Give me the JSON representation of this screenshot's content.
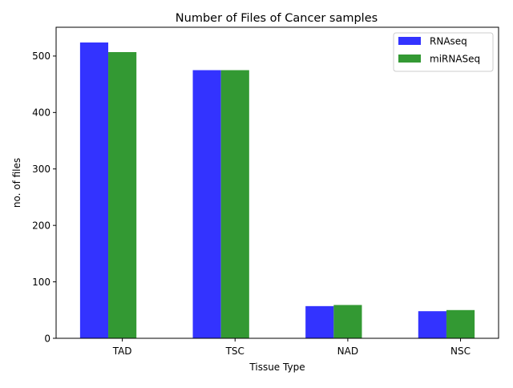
{
  "chart_data": {
    "type": "bar",
    "title": "Number of Files of Cancer samples",
    "xlabel": "Tissue Type",
    "ylabel": "no. of files",
    "categories": [
      "TAD",
      "TSC",
      "NAD",
      "NSC"
    ],
    "series": [
      {
        "name": "RNAseq",
        "values": [
          524,
          475,
          57,
          48
        ],
        "color": "#3333ff"
      },
      {
        "name": "miRNASeq",
        "values": [
          507,
          475,
          59,
          50
        ],
        "color": "#339933"
      }
    ],
    "ylim": [
      0,
      551
    ],
    "yticks": [
      0,
      100,
      200,
      300,
      400,
      500
    ],
    "grid": false,
    "legend": "top-right"
  }
}
